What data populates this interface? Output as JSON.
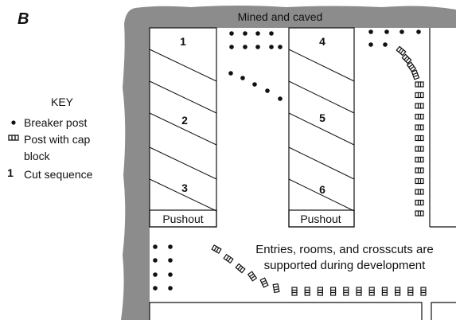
{
  "panel_label": "B",
  "header": "Mined and caved",
  "key": {
    "title": "KEY",
    "breaker_post": "Breaker post",
    "cap_block_post": [
      "Post with cap",
      "block"
    ],
    "cut_symbol": "1",
    "cut_sequence": "Cut sequence"
  },
  "cuts": [
    "1",
    "2",
    "3",
    "4",
    "5",
    "6"
  ],
  "pushouts": [
    "Pushout",
    "Pushout"
  ],
  "note": [
    "Entries, rooms, and crosscuts are",
    "supported during development"
  ]
}
